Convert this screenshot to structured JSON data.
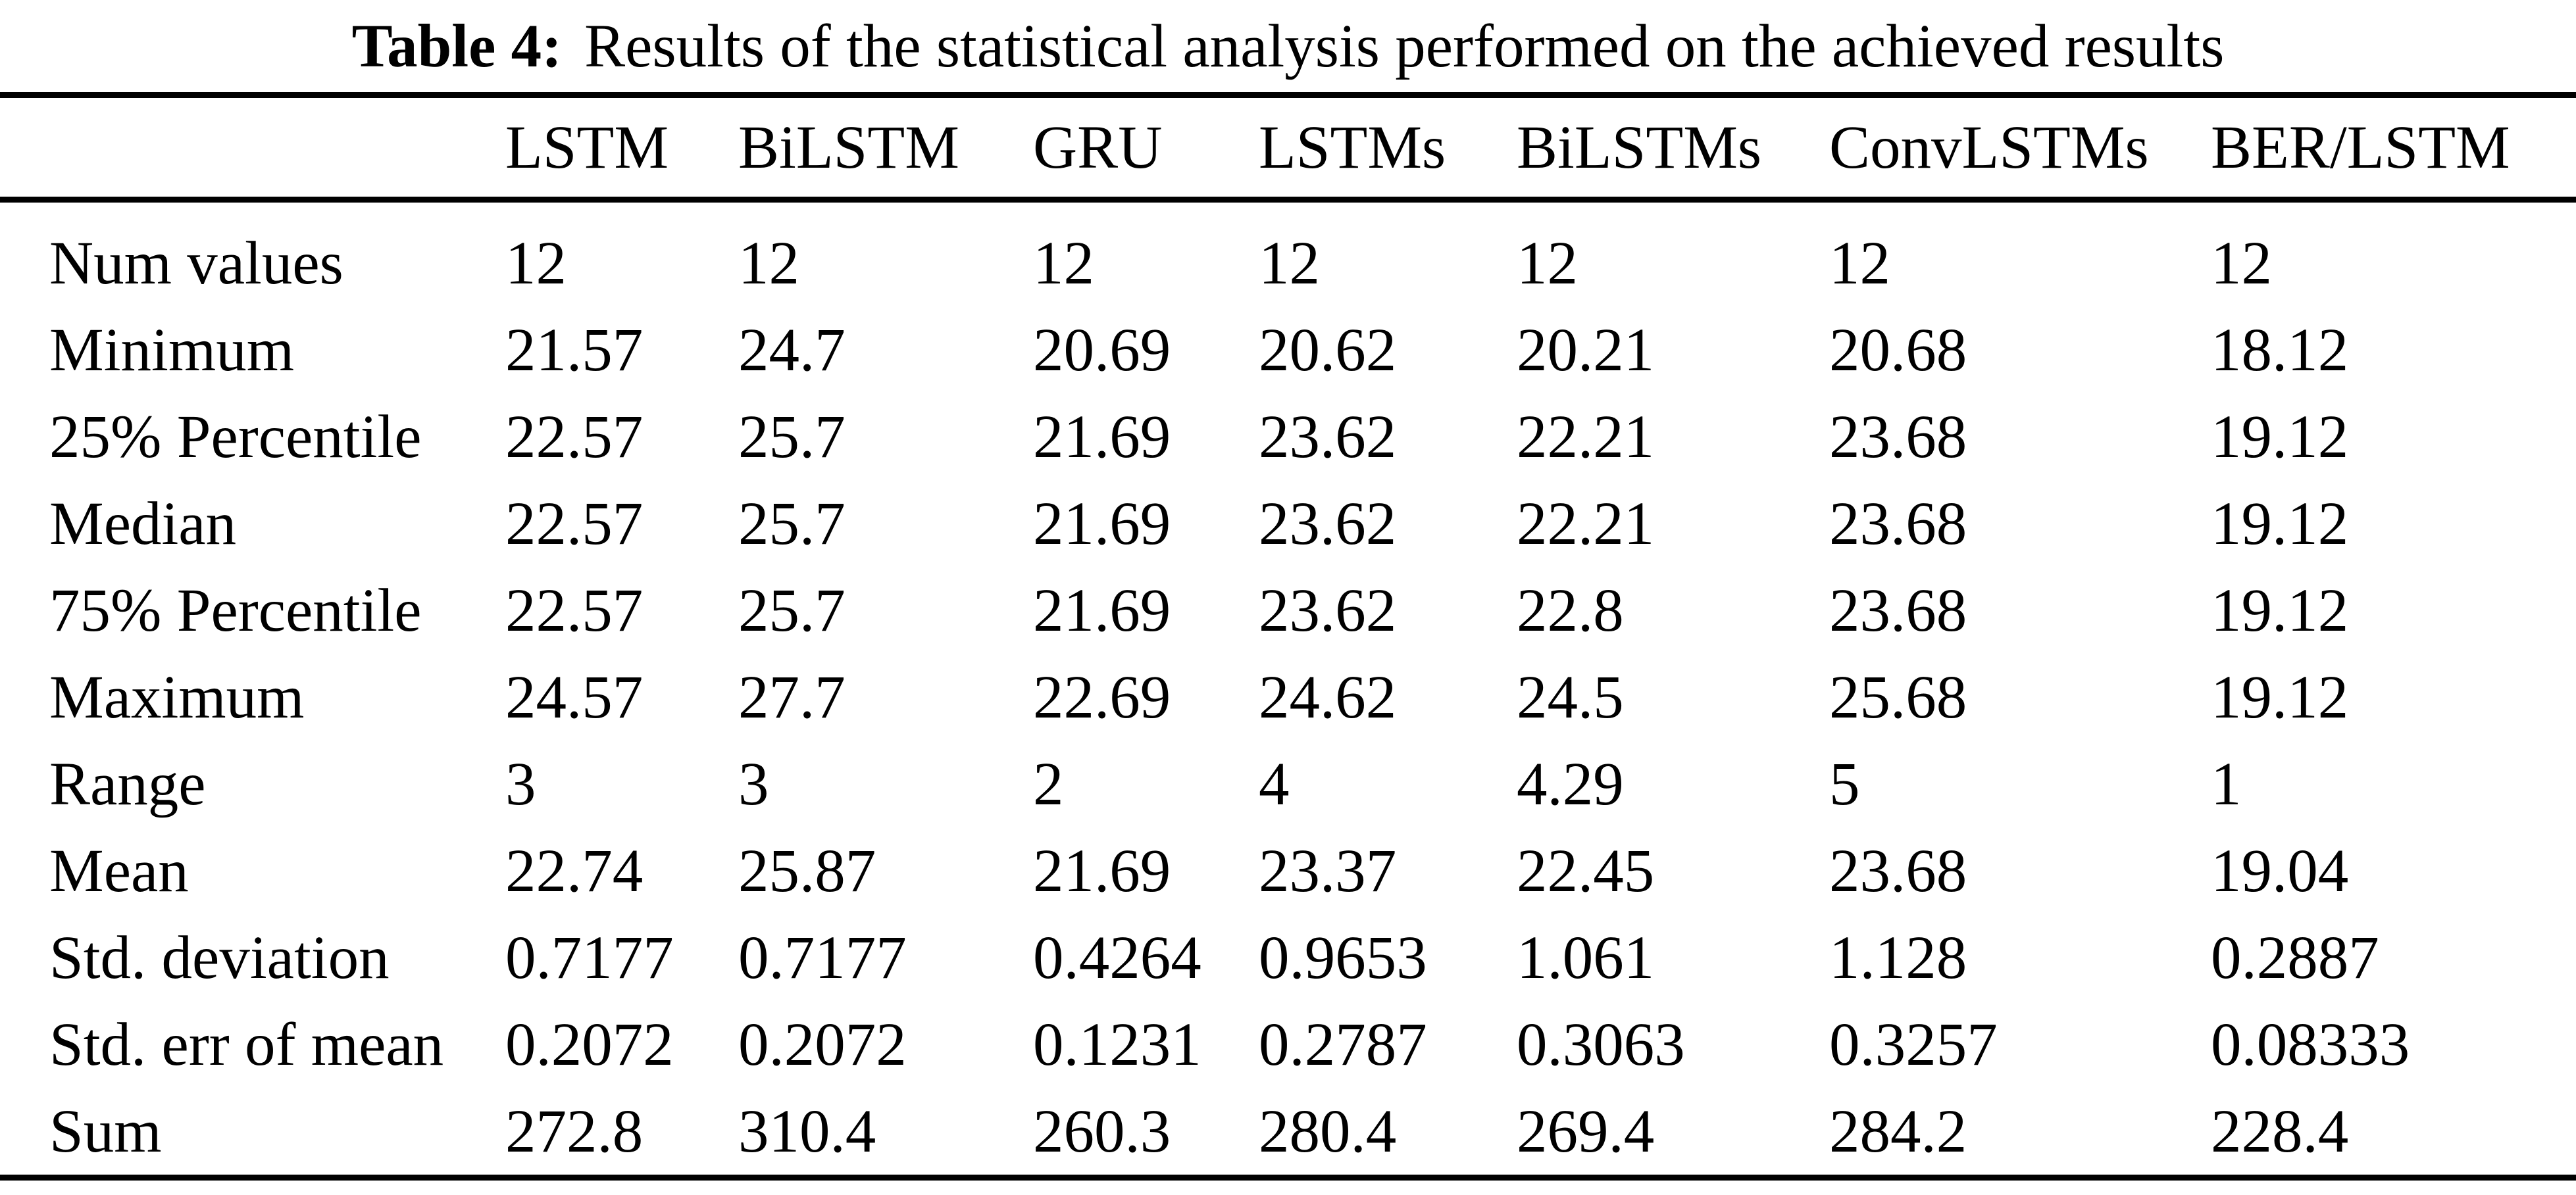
{
  "caption": {
    "label": "Table 4:",
    "text": "Results of the statistical analysis performed on the achieved results"
  },
  "table": {
    "columns": [
      "",
      "LSTM",
      "BiLSTM",
      "GRU",
      "LSTMs",
      "BiLSTMs",
      "ConvLSTMs",
      "BER/LSTM"
    ],
    "rows": [
      {
        "label": "Num values",
        "values": [
          "12",
          "12",
          "12",
          "12",
          "12",
          "12",
          "12"
        ]
      },
      {
        "label": "Minimum",
        "values": [
          "21.57",
          "24.7",
          "20.69",
          "20.62",
          "20.21",
          "20.68",
          "18.12"
        ]
      },
      {
        "label": "25% Percentile",
        "values": [
          "22.57",
          "25.7",
          "21.69",
          "23.62",
          "22.21",
          "23.68",
          "19.12"
        ]
      },
      {
        "label": "Median",
        "values": [
          "22.57",
          "25.7",
          "21.69",
          "23.62",
          "22.21",
          "23.68",
          "19.12"
        ]
      },
      {
        "label": "75% Percentile",
        "values": [
          "22.57",
          "25.7",
          "21.69",
          "23.62",
          "22.8",
          "23.68",
          "19.12"
        ]
      },
      {
        "label": "Maximum",
        "values": [
          "24.57",
          "27.7",
          "22.69",
          "24.62",
          "24.5",
          "25.68",
          "19.12"
        ]
      },
      {
        "label": "Range",
        "values": [
          "3",
          "3",
          "2",
          "4",
          "4.29",
          "5",
          "1"
        ]
      },
      {
        "label": "Mean",
        "values": [
          "22.74",
          "25.87",
          "21.69",
          "23.37",
          "22.45",
          "23.68",
          "19.04"
        ]
      },
      {
        "label": "Std. deviation",
        "values": [
          "0.7177",
          "0.7177",
          "0.4264",
          "0.9653",
          "1.061",
          "1.128",
          "0.2887"
        ]
      },
      {
        "label": "Std. err of mean",
        "values": [
          "0.2072",
          "0.2072",
          "0.1231",
          "0.2787",
          "0.3063",
          "0.3257",
          "0.08333"
        ]
      },
      {
        "label": "Sum",
        "values": [
          "272.8",
          "310.4",
          "260.3",
          "280.4",
          "269.4",
          "284.2",
          "228.4"
        ]
      }
    ]
  }
}
